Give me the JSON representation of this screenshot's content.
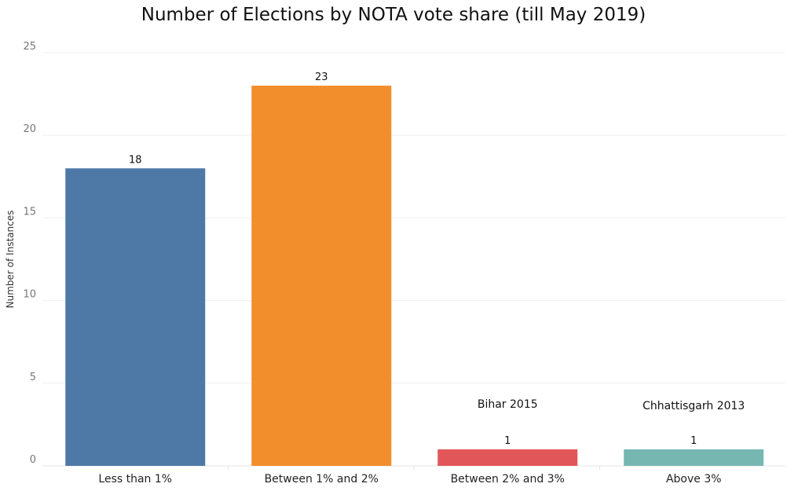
{
  "chart_data": {
    "type": "bar",
    "title": "Number of Elections by NOTA vote share (till May 2019)",
    "xlabel": "",
    "ylabel": "Number of Instances",
    "ylim": [
      0,
      25
    ],
    "yticks": [
      0,
      5,
      10,
      15,
      20,
      25
    ],
    "grid": true,
    "categories": [
      "Less than 1%",
      "Between 1% and 2%",
      "Between 2% and 3%",
      "Above 3%"
    ],
    "values": [
      18,
      23,
      1,
      1
    ],
    "data_labels": [
      "18",
      "23",
      "1",
      "1"
    ],
    "colors": [
      "#4e79a7",
      "#f28e2b",
      "#e15759",
      "#76b7b2"
    ],
    "annotations": [
      "",
      "",
      "Bihar 2015",
      "Chhattisgarh 2013"
    ]
  }
}
